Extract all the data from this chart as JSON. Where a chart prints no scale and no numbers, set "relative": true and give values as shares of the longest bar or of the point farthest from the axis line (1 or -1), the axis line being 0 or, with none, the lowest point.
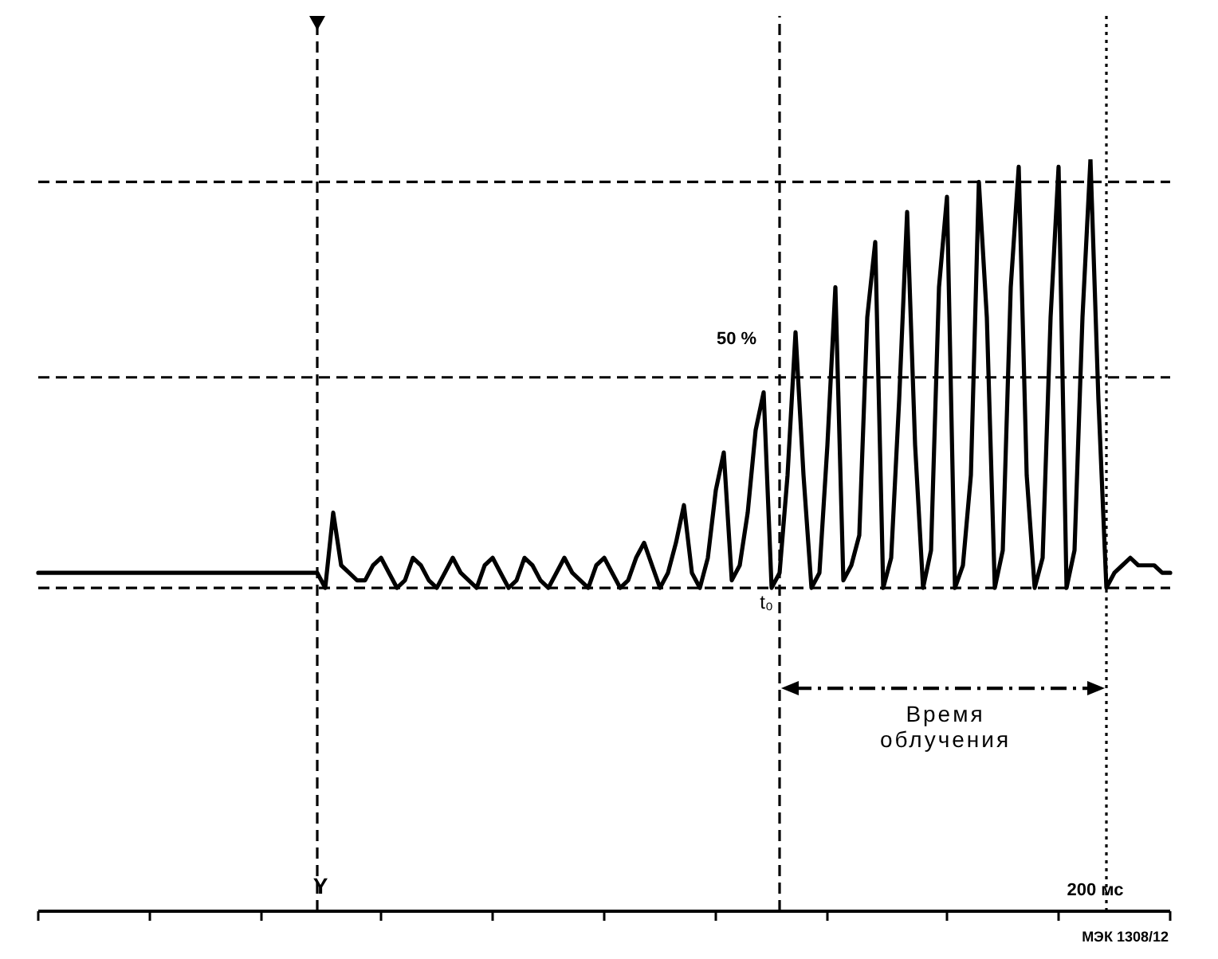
{
  "chart_data": {
    "type": "line",
    "relative": true,
    "categories": [
      null,
      null,
      null,
      null,
      null,
      null,
      null,
      null,
      null,
      null,
      null,
      null,
      null,
      null,
      null,
      null,
      null,
      null,
      null,
      null,
      null,
      null,
      null,
      null,
      null,
      null,
      null,
      null,
      null,
      null,
      null,
      null,
      null,
      null,
      null,
      null,
      null,
      null,
      null,
      null,
      null,
      null,
      null,
      null,
      null,
      null,
      null,
      null,
      null,
      null,
      null,
      null,
      null,
      null,
      null,
      null,
      null,
      null,
      null,
      null,
      null,
      null,
      null,
      null,
      null,
      null,
      null,
      null,
      null,
      null,
      null,
      null,
      null,
      null,
      null,
      null,
      null,
      null,
      null,
      null,
      null,
      null,
      null,
      null,
      null,
      null,
      null,
      null,
      null,
      null,
      null,
      null,
      null,
      null,
      null,
      null,
      null,
      null,
      null,
      null,
      null,
      null,
      null,
      null,
      null,
      null,
      null,
      null,
      null,
      null,
      null,
      null,
      null,
      null,
      null,
      null,
      null,
      null,
      null,
      null,
      null,
      null,
      null,
      null,
      null,
      null,
      null,
      null,
      null,
      null,
      null,
      null,
      null,
      null,
      null,
      null,
      null,
      null,
      null,
      null,
      null,
      null,
      null
    ],
    "values": [
      0.45,
      0.45,
      0.45,
      0.45,
      0.45,
      0.45,
      0.45,
      0.45,
      0.45,
      0.45,
      0.45,
      0.45,
      0.45,
      0.45,
      0.45,
      0.45,
      0.45,
      0.45,
      0.45,
      0.45,
      0.45,
      0.45,
      0.45,
      0.45,
      0.45,
      0.45,
      0.45,
      0.45,
      0.45,
      0.45,
      0.45,
      0.45,
      0.45,
      0.45,
      0.45,
      0.45,
      0.43,
      0.53,
      0.46,
      0.45,
      0.44,
      0.44,
      0.46,
      0.47,
      0.45,
      0.43,
      0.44,
      0.47,
      0.46,
      0.44,
      0.43,
      0.45,
      0.47,
      0.45,
      0.44,
      0.43,
      0.46,
      0.47,
      0.45,
      0.43,
      0.44,
      0.47,
      0.46,
      0.44,
      0.43,
      0.45,
      0.47,
      0.45,
      0.44,
      0.43,
      0.46,
      0.47,
      0.45,
      0.43,
      0.44,
      0.47,
      0.49,
      0.46,
      0.43,
      0.45,
      0.49,
      0.54,
      0.45,
      0.43,
      0.47,
      0.56,
      0.61,
      0.44,
      0.46,
      0.53,
      0.64,
      0.69,
      0.43,
      0.45,
      0.58,
      0.77,
      0.58,
      0.43,
      0.45,
      0.62,
      0.83,
      0.44,
      0.46,
      0.5,
      0.79,
      0.89,
      0.43,
      0.47,
      0.68,
      0.93,
      0.62,
      0.43,
      0.48,
      0.83,
      0.95,
      0.43,
      0.46,
      0.58,
      0.97,
      0.79,
      0.43,
      0.48,
      0.83,
      0.99,
      0.58,
      0.43,
      0.47,
      0.79,
      0.99,
      0.43,
      0.48,
      0.79,
      1,
      0.68,
      0.43,
      0.45,
      0.46,
      0.47,
      0.46,
      0.46,
      0.46,
      0.45,
      0.45
    ],
    "color": "#000000",
    "ref_lines": [
      {
        "axis": "y",
        "value": 0.97,
        "line_style": "dashed",
        "color": "#000000"
      },
      {
        "axis": "y",
        "value": 0.71,
        "line_style": "dashed",
        "color": "#000000"
      },
      {
        "axis": "y",
        "value": 0.43,
        "line_style": "dashed",
        "color": "#000000"
      }
    ],
    "annotations": [
      "50 %",
      "t₀",
      "Время облучения",
      "Y",
      "200 мс",
      "МЭК 1308/12"
    ]
  }
}
